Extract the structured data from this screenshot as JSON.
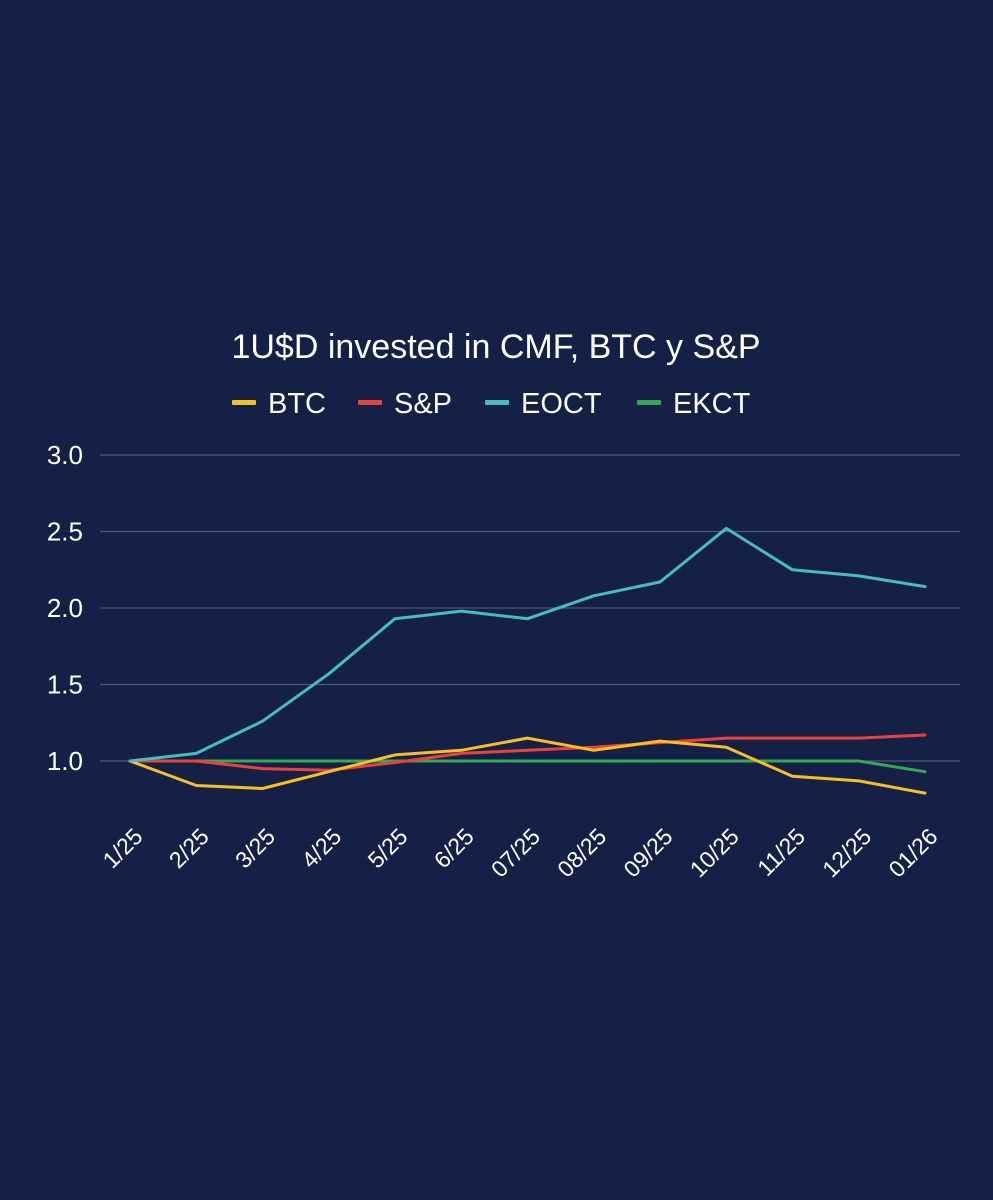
{
  "chart_data": {
    "type": "line",
    "title": "1U$D invested in CMF, BTC y S&P",
    "categories": [
      "1/25",
      "2/25",
      "3/25",
      "4/25",
      "5/25",
      "6/25",
      "07/25",
      "08/25",
      "09/25",
      "10/25",
      "11/25",
      "12/25",
      "01/26"
    ],
    "y_ticks": [
      "3.0",
      "2.5",
      "2.0",
      "1.5",
      "1.0"
    ],
    "ylim": [
      0.8,
      3.0
    ],
    "grid": true,
    "legend_position": "top",
    "xlabel": "",
    "ylabel": "",
    "series": [
      {
        "name": "BTC",
        "color": "#f6bf26",
        "values": [
          1.0,
          0.84,
          0.82,
          0.93,
          1.04,
          1.07,
          1.15,
          1.07,
          1.13,
          1.09,
          0.9,
          0.87,
          0.79
        ]
      },
      {
        "name": "S&P",
        "color": "#e5433b",
        "values": [
          1.0,
          1.0,
          0.95,
          0.94,
          0.99,
          1.05,
          1.07,
          1.09,
          1.12,
          1.15,
          1.15,
          1.15,
          1.17
        ]
      },
      {
        "name": "EOCT",
        "color": "#46bdc6",
        "values": [
          1.0,
          1.05,
          1.26,
          1.57,
          1.93,
          1.98,
          1.93,
          2.08,
          2.17,
          2.52,
          2.25,
          2.21,
          2.14
        ]
      },
      {
        "name": "EKCT",
        "color": "#34a853",
        "values": [
          1.0,
          1.0,
          1.0,
          1.0,
          1.0,
          1.0,
          1.0,
          1.0,
          1.0,
          1.0,
          1.0,
          1.0,
          0.93
        ]
      }
    ]
  }
}
